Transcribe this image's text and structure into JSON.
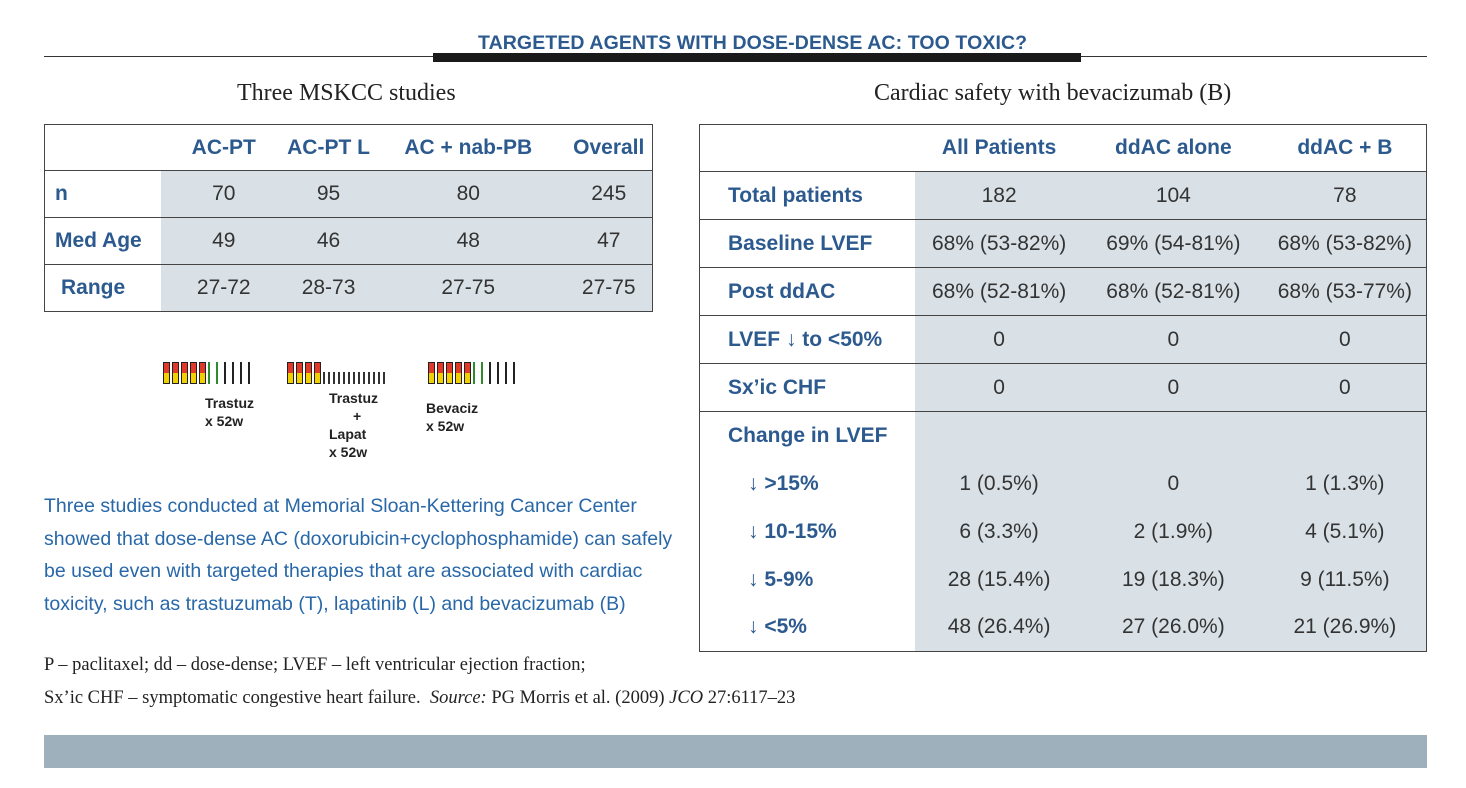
{
  "title": "TARGETED AGENTS WITH DOSE-DENSE AC: TOO TOXIC?",
  "left_section": {
    "heading": "Three MSKCC studies",
    "columns": [
      "",
      "AC-PT",
      "AC-PT L",
      "AC + nab-PB",
      "Overall"
    ],
    "rows": [
      {
        "label": "n",
        "values": [
          "70",
          "95",
          "80",
          "245"
        ]
      },
      {
        "label": "Med Age",
        "values": [
          "49",
          "46",
          "48",
          "47"
        ]
      },
      {
        "label": "Range",
        "values": [
          "27-72",
          "28-73",
          "27-75",
          "27-75"
        ]
      }
    ],
    "schedules": [
      {
        "label1": "Trastuz",
        "label2": "x 52w"
      },
      {
        "label1": "Trastuz",
        "label2": "+",
        "label3": "Lapat",
        "label4": "x 52w"
      },
      {
        "label1": "Bevaciz",
        "label2": "x 52w"
      }
    ]
  },
  "summary_lines": [
    "Three studies conducted at Memorial Sloan-Kettering Cancer Center",
    "showed that dose-dense AC (doxorubicin+cyclophosphamide) can safely",
    "be used even with targeted therapies that are associated with cardiac",
    "toxicity, such as trastuzumab (T), lapatinib (L) and bevacizumab (B)"
  ],
  "right_section": {
    "heading": "Cardiac safety with bevacizumab (B)",
    "columns": [
      "",
      "All Patients",
      "ddAC alone",
      "ddAC + B"
    ],
    "rows": [
      {
        "label": "Total patients",
        "values": [
          "182",
          "104",
          "78"
        ]
      },
      {
        "label": "Baseline LVEF",
        "values": [
          "68% (53-82%)",
          "69% (54-81%)",
          "68% (53-82%)"
        ]
      },
      {
        "label": "Post ddAC",
        "values": [
          "68% (52-81%)",
          "68% (52-81%)",
          "68% (53-77%)"
        ]
      },
      {
        "label": "LVEF ↓ to <50%",
        "values": [
          "0",
          "0",
          "0"
        ]
      },
      {
        "label": "Sx’ic CHF",
        "values": [
          "0",
          "0",
          "0"
        ]
      }
    ],
    "change_heading": "Change in LVEF",
    "change_rows": [
      {
        "label": "↓  >15%",
        "values": [
          "1 (0.5%)",
          "0",
          "1 (1.3%)"
        ]
      },
      {
        "label": "↓  10-15%",
        "values": [
          "6 (3.3%)",
          "2 (1.9%)",
          "4 (5.1%)"
        ]
      },
      {
        "label": "↓  5-9%",
        "values": [
          "28 (15.4%)",
          "19 (18.3%)",
          "9 (11.5%)"
        ]
      },
      {
        "label": "↓  <5%",
        "values": [
          "48 (26.4%)",
          "27 (26.0%)",
          "21 (26.9%)"
        ]
      }
    ]
  },
  "footnote": {
    "line1": "P – paclitaxel; dd – dose-dense; LVEF – left ventricular ejection fraction;",
    "line2_a": "Sx’ic CHF – symptomatic congestive heart failure.",
    "source_label": "Source:",
    "line2_b": "PG Morris et al. (2009)",
    "journal": "JCO",
    "citation": "27:6117–23"
  },
  "colors": {
    "accent_blue": "#2c5a8f",
    "text_blue": "#2867a8",
    "shade": "#d9e1e7",
    "bottom_bar": "#9fb0bd"
  }
}
